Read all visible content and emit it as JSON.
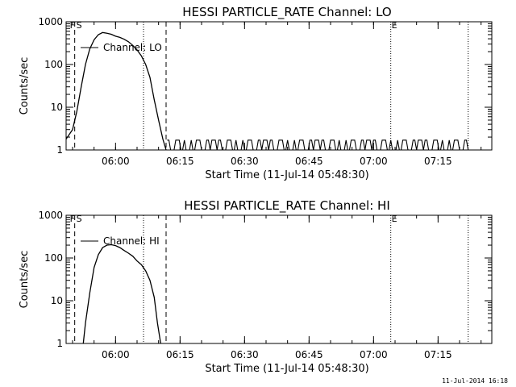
{
  "chart_data": [
    {
      "type": "line",
      "title": "HESSI PARTICLE_RATE Channel: LO",
      "xlabel": "Start Time (11-Jul-14 05:48:30)",
      "ylabel": "Counts/sec",
      "y_scale": "log",
      "ylim": [
        1,
        1000
      ],
      "xlim_minutes_after_start": [
        0,
        99
      ],
      "x_ticks": [
        "06:00",
        "06:15",
        "06:30",
        "06:45",
        "07:00",
        "07:15"
      ],
      "y_ticks": [
        "1",
        "10",
        "100",
        "1000"
      ],
      "legend": "Channel: LO",
      "legend_placement": "top-left",
      "markers": [
        {
          "label": "F",
          "time": "05:50:30",
          "style": "dashed"
        },
        {
          "label": "S",
          "time": "05:50:30",
          "style": "dashed"
        },
        {
          "label": "",
          "time": "06:06:30",
          "style": "dotted"
        },
        {
          "label": "",
          "time": "06:11:45",
          "style": "dashed"
        },
        {
          "label": "E",
          "time": "07:04:00",
          "style": "dotted"
        },
        {
          "label": "",
          "time": "07:22:00",
          "style": "dotted"
        }
      ],
      "series": [
        {
          "name": "Channel: LO",
          "x": [
            "05:48:30",
            "05:50:00",
            "05:51:00",
            "05:52:00",
            "05:53:00",
            "05:54:00",
            "05:55:00",
            "05:56:00",
            "05:57:00",
            "05:58:00",
            "05:59:00",
            "06:00:00",
            "06:01:00",
            "06:02:00",
            "06:03:00",
            "06:04:00",
            "06:05:00",
            "06:06:00",
            "06:07:00",
            "06:08:00",
            "06:09:00",
            "06:10:00",
            "06:11:00",
            "06:11:45"
          ],
          "values": [
            1.8,
            3,
            8,
            30,
            100,
            230,
            380,
            500,
            560,
            540,
            510,
            460,
            430,
            390,
            340,
            280,
            220,
            160,
            100,
            50,
            15,
            5,
            1.8,
            1
          ],
          "noise": {
            "from": "06:12:00",
            "to": "07:22:00",
            "low": 1,
            "high": 1.7
          }
        }
      ]
    },
    {
      "type": "line",
      "title": "HESSI PARTICLE_RATE Channel: HI",
      "xlabel": "Start Time (11-Jul-14 05:48:30)",
      "ylabel": "Counts/sec",
      "y_scale": "log",
      "ylim": [
        1,
        1000
      ],
      "xlim_minutes_after_start": [
        0,
        99
      ],
      "x_ticks": [
        "06:00",
        "06:15",
        "06:30",
        "06:45",
        "07:00",
        "07:15"
      ],
      "y_ticks": [
        "1",
        "10",
        "100",
        "1000"
      ],
      "legend": "Channel: HI",
      "legend_placement": "top-left",
      "markers": [
        {
          "label": "F",
          "time": "05:50:30",
          "style": "dashed"
        },
        {
          "label": "S",
          "time": "05:50:30",
          "style": "dashed"
        },
        {
          "label": "",
          "time": "06:06:30",
          "style": "dotted"
        },
        {
          "label": "",
          "time": "06:11:45",
          "style": "dashed"
        },
        {
          "label": "E",
          "time": "07:04:00",
          "style": "dotted"
        },
        {
          "label": "",
          "time": "07:22:00",
          "style": "dotted"
        }
      ],
      "series": [
        {
          "name": "Channel: HI",
          "x": [
            "05:52:30",
            "05:53:00",
            "05:54:00",
            "05:55:00",
            "05:56:00",
            "05:57:00",
            "05:58:00",
            "05:59:00",
            "06:00:00",
            "06:01:00",
            "06:02:00",
            "06:03:00",
            "06:04:00",
            "06:05:00",
            "06:06:00",
            "06:07:00",
            "06:08:00",
            "06:09:00",
            "06:09:45",
            "06:10:30"
          ],
          "values": [
            1,
            3,
            15,
            60,
            120,
            175,
            200,
            205,
            195,
            175,
            150,
            130,
            110,
            85,
            70,
            50,
            30,
            12,
            3,
            1
          ]
        }
      ]
    }
  ],
  "footer": {
    "timestamp": "11-Jul-2014 16:18"
  }
}
